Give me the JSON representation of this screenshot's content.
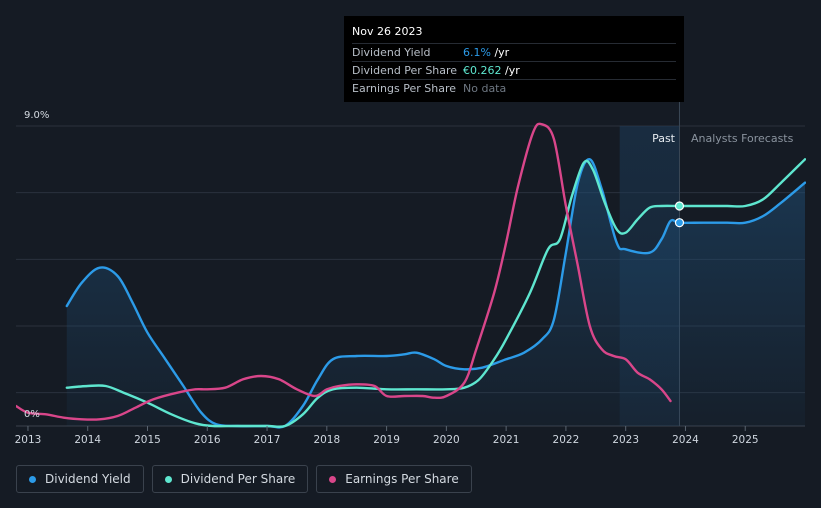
{
  "tooltip": {
    "date": "Nov 26 2023",
    "rows": [
      {
        "label": "Dividend Yield",
        "value": "6.1%",
        "unit": " /yr"
      },
      {
        "label": "Dividend Per Share",
        "value": "€0.262",
        "unit": " /yr"
      },
      {
        "label": "Earnings Per Share",
        "value": "No data",
        "unit": ""
      }
    ]
  },
  "legend": [
    {
      "label": "Dividend Yield",
      "color": "#2c9be8"
    },
    {
      "label": "Dividend Per Share",
      "color": "#5ee6cf"
    },
    {
      "label": "Earnings Per Share",
      "color": "#d9468a"
    }
  ],
  "chart_data": {
    "type": "line",
    "y_top_label": "9.0%",
    "y_bottom_label": "0%",
    "ylim": [
      0,
      9.0
    ],
    "xlim": [
      2012.8,
      2026.0
    ],
    "x_ticks": [
      "2013",
      "2014",
      "2015",
      "2016",
      "2017",
      "2018",
      "2019",
      "2020",
      "2021",
      "2022",
      "2023",
      "2024",
      "2025"
    ],
    "forecast_start": 2023.9,
    "past_label": "Past",
    "forecast_label": "Analysts Forecasts",
    "series": [
      {
        "name": "Dividend Yield",
        "color": "#2c9be8",
        "fill": true,
        "x": [
          2013.65,
          2013.9,
          2014.2,
          2014.5,
          2014.75,
          2015.0,
          2015.3,
          2015.6,
          2015.9,
          2016.15,
          2016.5,
          2017.0,
          2017.3,
          2017.6,
          2017.85,
          2018.1,
          2018.5,
          2019.0,
          2019.3,
          2019.5,
          2019.8,
          2020.0,
          2020.3,
          2020.6,
          2021.0,
          2021.3,
          2021.6,
          2021.8,
          2022.0,
          2022.2,
          2022.4,
          2022.6,
          2022.85,
          2023.0,
          2023.4,
          2023.6,
          2023.75,
          2023.9,
          2024.3,
          2024.7,
          2025.0,
          2025.3,
          2025.6,
          2026.0
        ],
        "y": [
          3.6,
          4.3,
          4.75,
          4.5,
          3.7,
          2.8,
          2.0,
          1.2,
          0.4,
          0.05,
          0.0,
          0.0,
          0.0,
          0.6,
          1.4,
          2.0,
          2.1,
          2.1,
          2.15,
          2.2,
          2.0,
          1.8,
          1.7,
          1.75,
          2.0,
          2.2,
          2.6,
          3.2,
          5.2,
          7.3,
          8.0,
          7.1,
          5.5,
          5.3,
          5.2,
          5.6,
          6.15,
          6.1,
          6.1,
          6.1,
          6.1,
          6.3,
          6.7,
          7.3
        ]
      },
      {
        "name": "Dividend Per Share",
        "color": "#5ee6cf",
        "fill": false,
        "x": [
          2013.65,
          2014.0,
          2014.3,
          2014.6,
          2015.0,
          2015.4,
          2015.8,
          2016.1,
          2016.5,
          2017.0,
          2017.3,
          2017.6,
          2017.85,
          2018.1,
          2018.5,
          2019.0,
          2019.5,
          2020.0,
          2020.3,
          2020.55,
          2020.8,
          2021.0,
          2021.4,
          2021.7,
          2021.9,
          2022.1,
          2022.3,
          2022.45,
          2022.65,
          2022.85,
          2023.0,
          2023.2,
          2023.4,
          2023.6,
          2023.9,
          2024.3,
          2024.7,
          2025.0,
          2025.3,
          2025.6,
          2026.0
        ],
        "y": [
          1.15,
          1.2,
          1.2,
          1.0,
          0.7,
          0.35,
          0.08,
          0.0,
          0.0,
          0.0,
          0.0,
          0.35,
          0.85,
          1.1,
          1.15,
          1.1,
          1.1,
          1.1,
          1.15,
          1.4,
          2.0,
          2.6,
          4.0,
          5.3,
          5.6,
          6.9,
          7.9,
          7.7,
          6.7,
          5.9,
          5.8,
          6.2,
          6.55,
          6.6,
          6.6,
          6.6,
          6.6,
          6.6,
          6.8,
          7.3,
          8.0
        ]
      },
      {
        "name": "Earnings Per Share",
        "color": "#d9468a",
        "fill": false,
        "x": [
          2012.8,
          2013.0,
          2013.3,
          2013.6,
          2013.9,
          2014.2,
          2014.5,
          2014.8,
          2015.1,
          2015.5,
          2015.8,
          2016.0,
          2016.3,
          2016.6,
          2016.9,
          2017.2,
          2017.5,
          2017.8,
          2018.0,
          2018.2,
          2018.5,
          2018.8,
          2019.0,
          2019.3,
          2019.6,
          2019.8,
          2020.0,
          2020.3,
          2020.5,
          2020.8,
          2021.0,
          2021.2,
          2021.45,
          2021.6,
          2021.8,
          2022.0,
          2022.2,
          2022.4,
          2022.6,
          2022.8,
          2023.0,
          2023.2,
          2023.4,
          2023.6,
          2023.75
        ],
        "y": [
          0.6,
          0.4,
          0.35,
          0.25,
          0.2,
          0.2,
          0.3,
          0.55,
          0.8,
          1.0,
          1.1,
          1.1,
          1.15,
          1.4,
          1.5,
          1.4,
          1.1,
          0.9,
          1.1,
          1.2,
          1.25,
          1.2,
          0.9,
          0.9,
          0.9,
          0.85,
          0.9,
          1.3,
          2.3,
          4.0,
          5.5,
          7.2,
          8.8,
          9.05,
          8.6,
          6.6,
          4.8,
          3.0,
          2.3,
          2.1,
          2.0,
          1.6,
          1.4,
          1.1,
          0.75
        ]
      }
    ],
    "tooltip_x": 2023.9
  }
}
